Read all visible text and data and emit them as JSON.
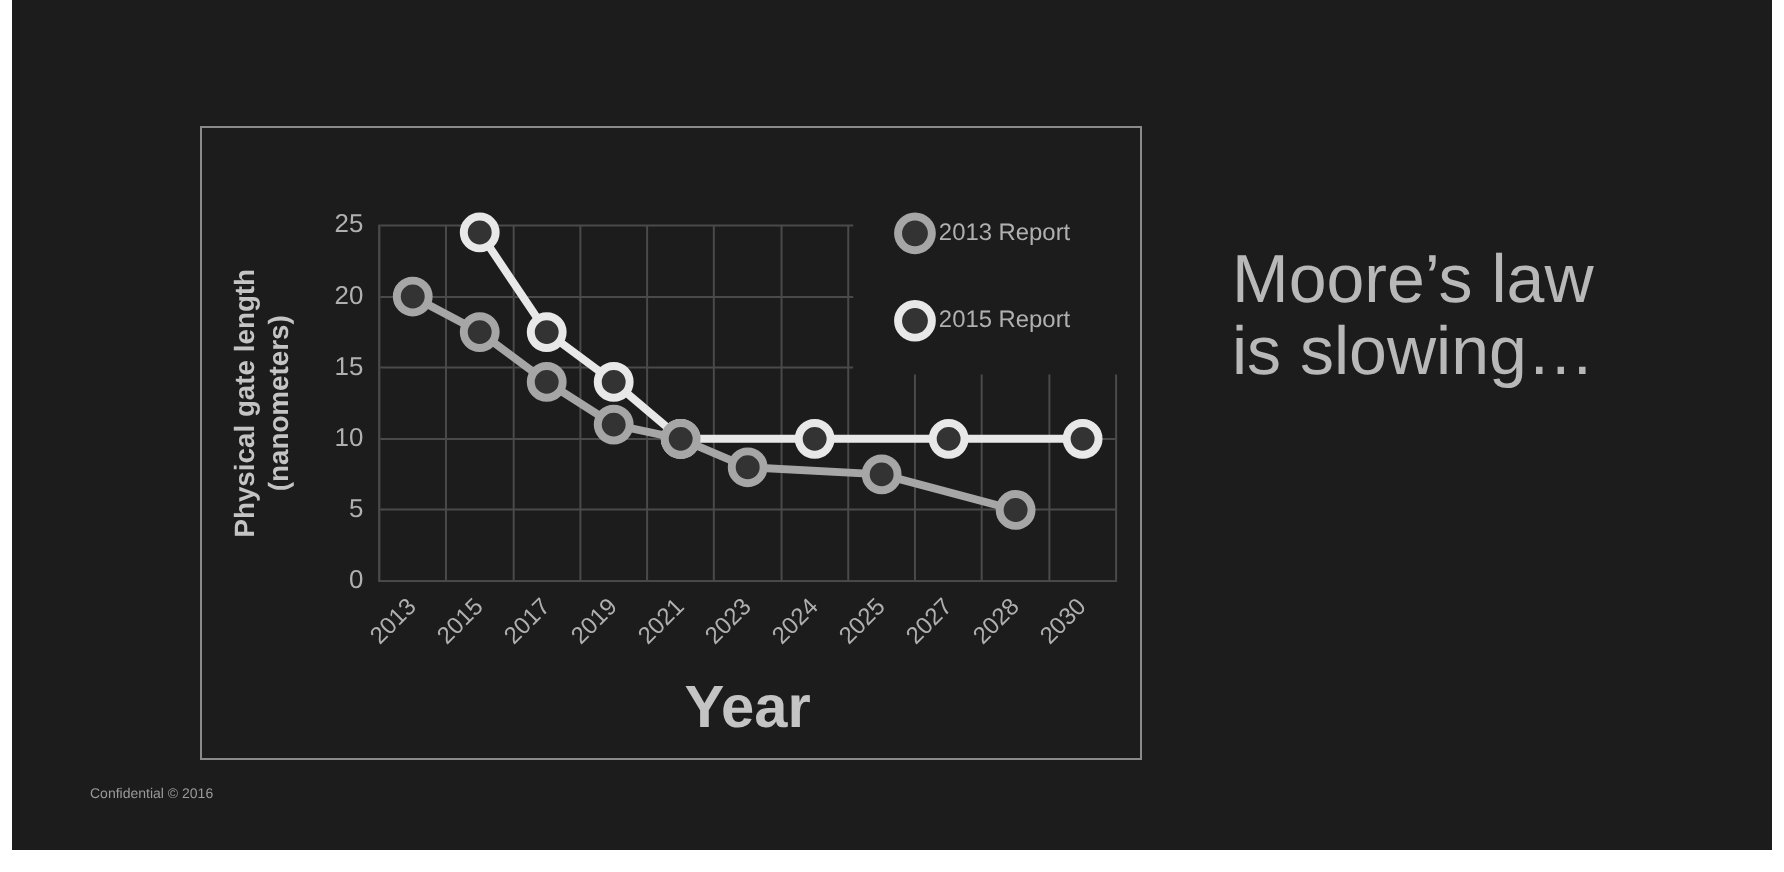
{
  "chart_data": {
    "type": "line",
    "title": "Moore’s law is slowing…",
    "xlabel": "Year",
    "ylabel": "Physical gate length\n(nanometers)",
    "categories": [
      "2013",
      "2015",
      "2017",
      "2019",
      "2021",
      "2023",
      "2024",
      "2025",
      "2027",
      "2028",
      "2030"
    ],
    "series": [
      {
        "name": "2013 Report",
        "color": "#a6a6a6",
        "values": [
          20,
          17.5,
          14,
          11,
          10,
          8,
          null,
          7.5,
          null,
          5,
          null
        ]
      },
      {
        "name": "2015 Report",
        "color": "#e8e8e8",
        "values": [
          null,
          24.5,
          17.5,
          14,
          10,
          null,
          10,
          null,
          10,
          null,
          10
        ]
      }
    ],
    "ylim": [
      0,
      25
    ],
    "yticks": [
      0,
      5,
      10,
      15,
      20,
      25
    ],
    "grid": true,
    "legend": "top right",
    "marker": "circle",
    "line_style": "solid",
    "annotations": [
      "Confidential © 2016"
    ]
  }
}
